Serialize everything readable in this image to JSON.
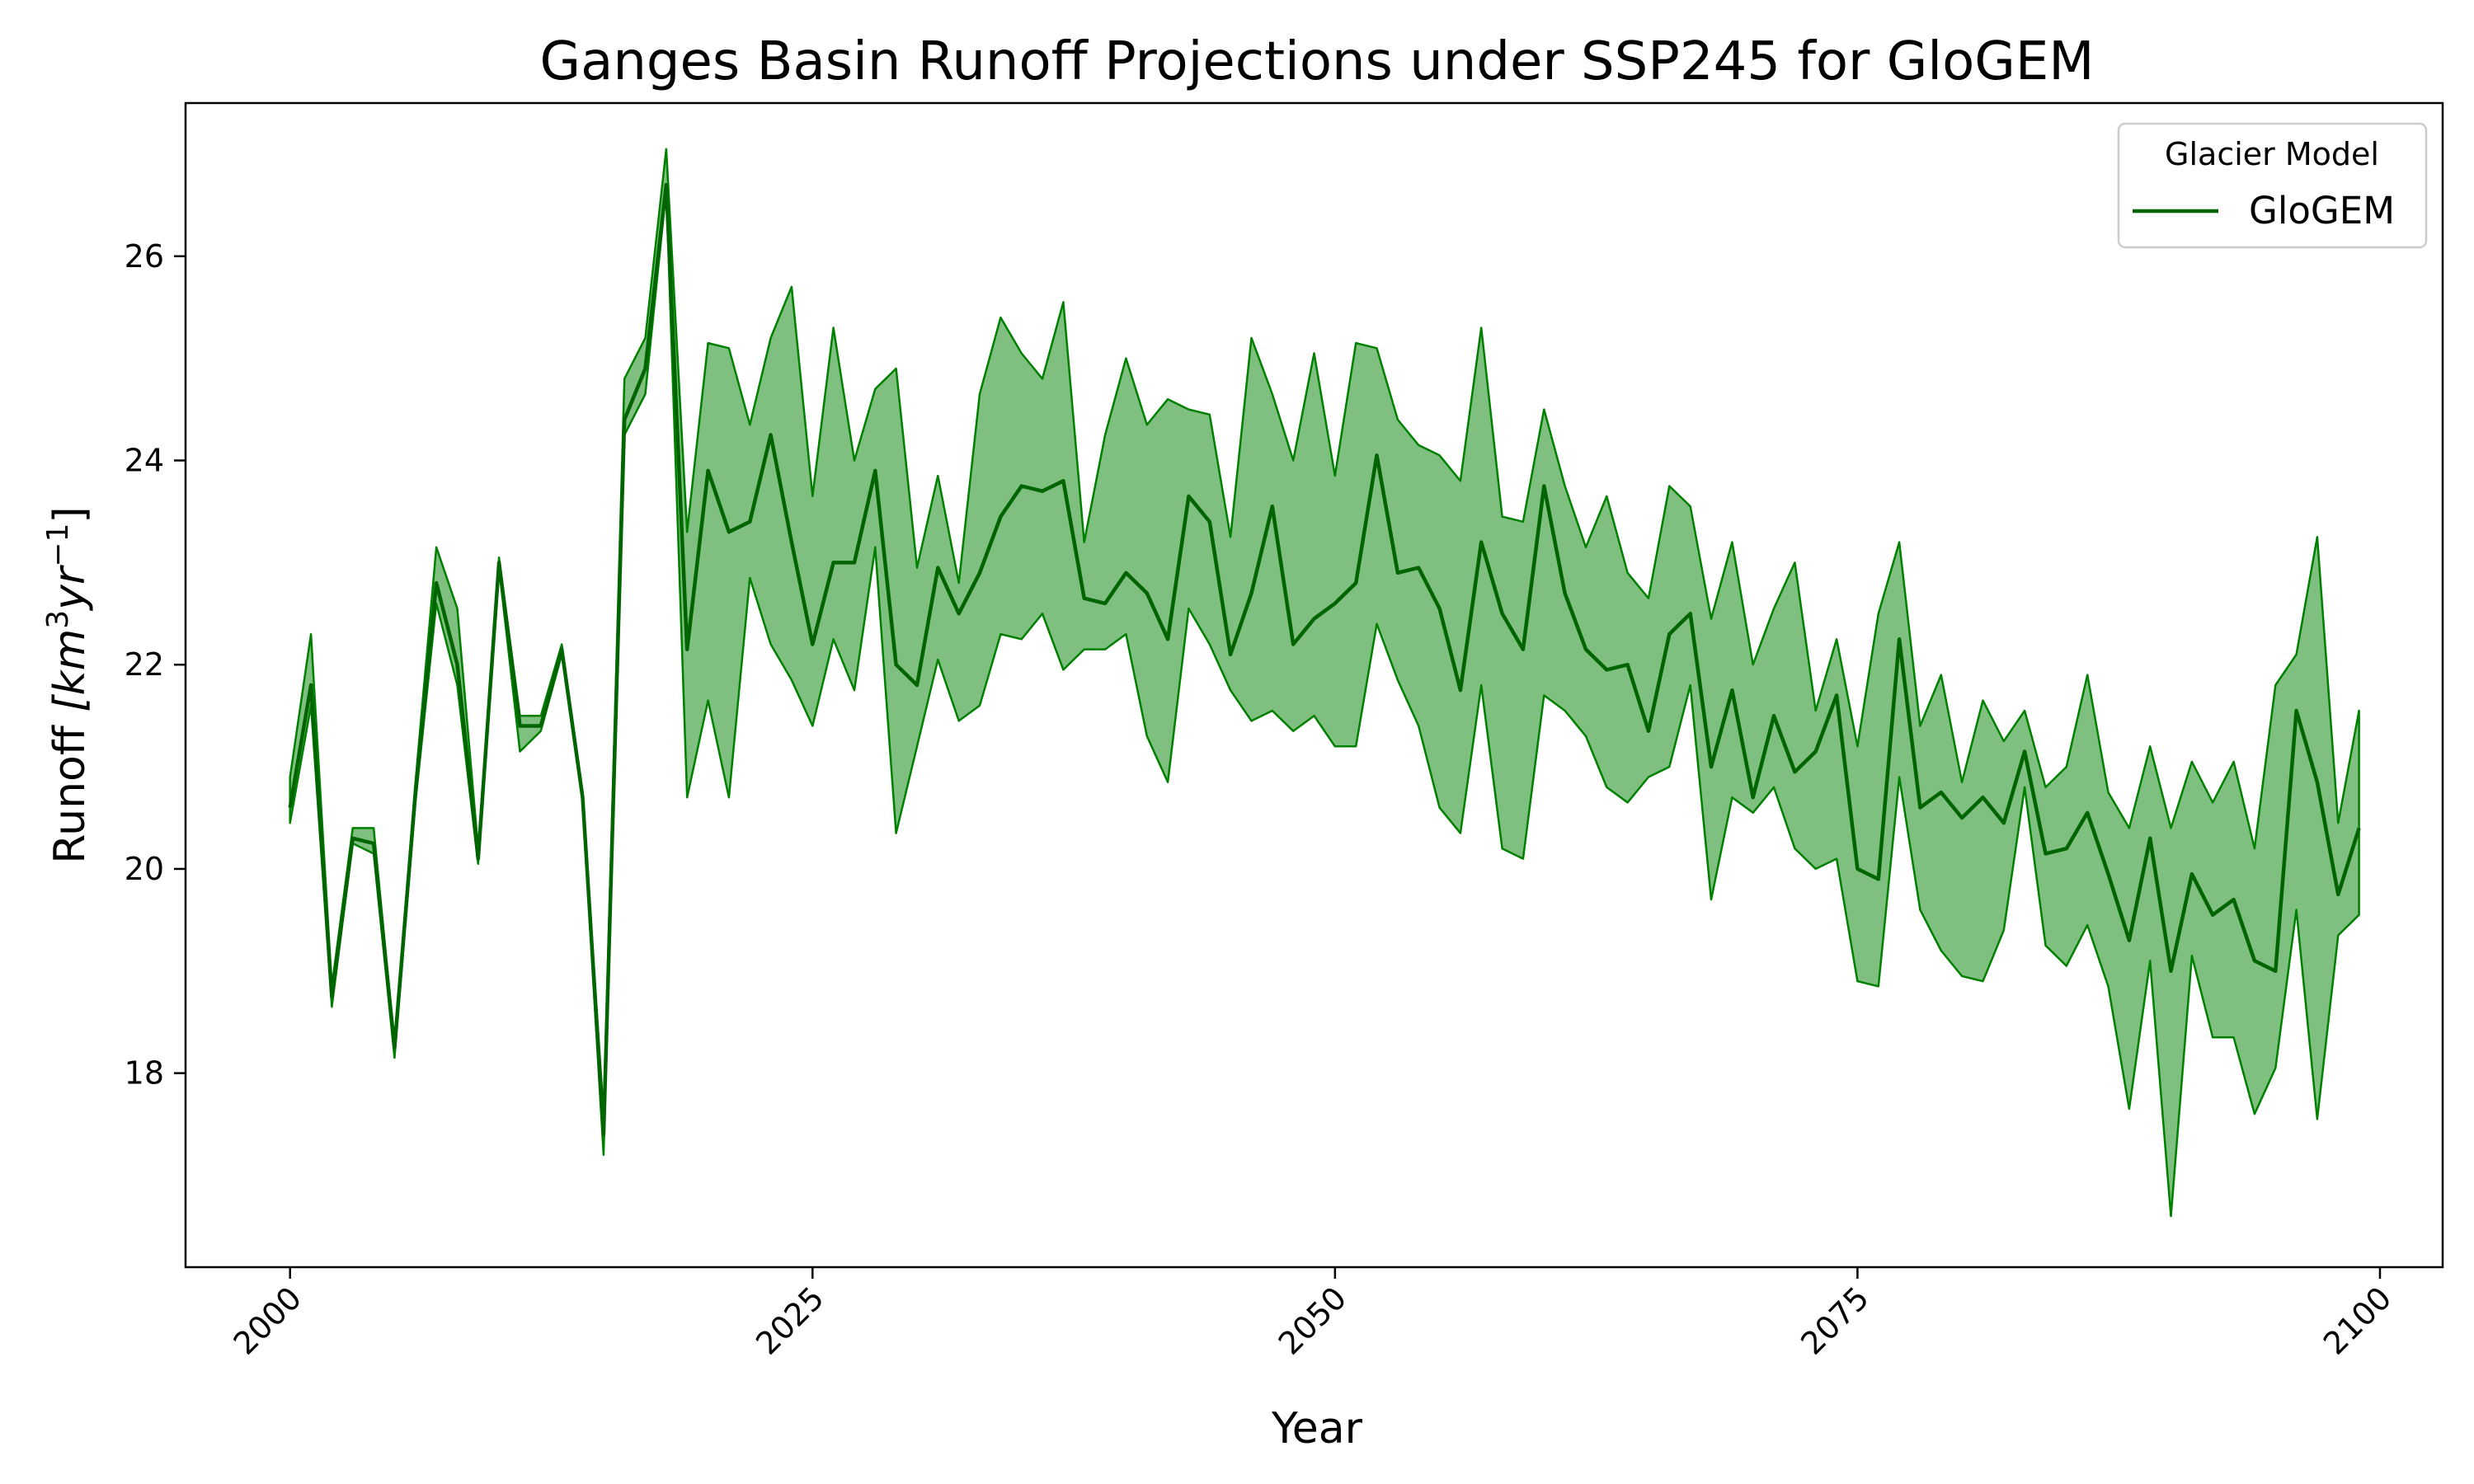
{
  "chart_data": {
    "type": "line",
    "title": "Ganges Basin Runoff Projections under SSP245 for GloGEM",
    "xlabel": "Year",
    "ylabel": "Runoff",
    "ylabel_unit_text": "[km",
    "ylabel_exp1": "3",
    "ylabel_unit_mid": "yr",
    "ylabel_exp2": "−1",
    "ylabel_close": "]",
    "xlim": [
      1995,
      2103
    ],
    "ylim": [
      16.1,
      27.5
    ],
    "xticks": [
      2000,
      2025,
      2050,
      2075,
      2100
    ],
    "yticks": [
      18,
      20,
      22,
      24,
      26
    ],
    "grid": false,
    "legend": {
      "title": "Glacier Model",
      "position": "top-right",
      "entries": [
        "GloGEM"
      ]
    },
    "colors": {
      "line": "#006400",
      "fill": "#008000",
      "fill_alpha": 0.5
    },
    "x": [
      2000,
      2001,
      2002,
      2003,
      2004,
      2005,
      2006,
      2007,
      2008,
      2009,
      2010,
      2011,
      2012,
      2013,
      2014,
      2015,
      2016,
      2017,
      2018,
      2019,
      2020,
      2021,
      2022,
      2023,
      2024,
      2025,
      2026,
      2027,
      2028,
      2029,
      2030,
      2031,
      2032,
      2033,
      2034,
      2035,
      2036,
      2037,
      2038,
      2039,
      2040,
      2041,
      2042,
      2043,
      2044,
      2045,
      2046,
      2047,
      2048,
      2049,
      2050,
      2051,
      2052,
      2053,
      2054,
      2055,
      2056,
      2057,
      2058,
      2059,
      2060,
      2061,
      2062,
      2063,
      2064,
      2065,
      2066,
      2067,
      2068,
      2069,
      2070,
      2071,
      2072,
      2073,
      2074,
      2075,
      2076,
      2077,
      2078,
      2079,
      2080,
      2081,
      2082,
      2083,
      2084,
      2085,
      2086,
      2087,
      2088,
      2089,
      2090,
      2091,
      2092,
      2093,
      2094,
      2095,
      2096,
      2097,
      2098,
      2099
    ],
    "series": [
      {
        "name": "GloGEM",
        "mean": [
          20.6,
          21.8,
          18.75,
          20.3,
          20.25,
          18.25,
          20.75,
          22.8,
          22.0,
          20.1,
          23.0,
          21.4,
          21.4,
          22.15,
          20.7,
          17.4,
          24.4,
          24.9,
          26.7,
          22.15,
          23.9,
          23.3,
          23.4,
          24.25,
          23.2,
          22.2,
          23.0,
          23.0,
          23.9,
          22.0,
          21.8,
          22.95,
          22.5,
          22.9,
          23.45,
          23.75,
          23.7,
          23.8,
          22.65,
          22.6,
          22.9,
          22.7,
          22.25,
          23.65,
          23.4,
          22.1,
          22.7,
          23.55,
          22.2,
          22.45,
          22.6,
          22.8,
          24.05,
          22.9,
          22.95,
          22.55,
          21.75,
          23.2,
          22.5,
          22.15,
          23.75,
          22.7,
          22.15,
          21.95,
          22.0,
          21.35,
          22.3,
          22.5,
          21.0,
          21.75,
          20.7,
          21.5,
          20.95,
          21.15,
          21.7,
          20.0,
          19.9,
          22.25,
          20.6,
          20.75,
          20.5,
          20.7,
          20.45,
          21.15,
          20.15,
          20.2,
          20.55,
          19.95,
          19.3,
          20.3,
          19.0,
          19.95,
          19.55,
          19.7,
          19.1,
          19.0,
          21.55,
          20.85,
          19.75,
          20.4
        ],
        "upper": [
          20.9,
          22.3,
          18.85,
          20.4,
          20.4,
          18.3,
          20.85,
          23.15,
          22.55,
          20.2,
          23.05,
          21.5,
          21.5,
          22.2,
          20.75,
          17.6,
          24.8,
          25.2,
          27.05,
          23.3,
          25.15,
          25.1,
          24.35,
          25.2,
          25.7,
          23.65,
          25.3,
          24.0,
          24.7,
          24.9,
          22.95,
          23.85,
          22.8,
          24.65,
          25.4,
          25.05,
          24.8,
          25.55,
          23.2,
          24.25,
          25.0,
          24.35,
          24.6,
          24.5,
          24.45,
          23.25,
          25.2,
          24.65,
          24.0,
          25.05,
          23.85,
          25.15,
          25.1,
          24.4,
          24.15,
          24.05,
          23.8,
          25.3,
          23.45,
          23.4,
          24.5,
          23.75,
          23.15,
          23.65,
          22.9,
          22.65,
          23.75,
          23.55,
          22.45,
          23.2,
          22.0,
          22.55,
          23.0,
          21.55,
          22.25,
          21.2,
          22.5,
          23.2,
          21.4,
          21.9,
          20.85,
          21.65,
          21.25,
          21.55,
          20.8,
          21.0,
          21.9,
          20.75,
          20.4,
          21.2,
          20.4,
          21.05,
          20.65,
          21.05,
          20.2,
          21.8,
          22.1,
          23.25,
          20.45,
          21.55
        ],
        "lower": [
          20.45,
          21.6,
          18.65,
          20.25,
          20.15,
          18.15,
          20.65,
          22.6,
          21.8,
          20.05,
          22.95,
          21.15,
          21.35,
          22.1,
          20.65,
          17.2,
          24.25,
          24.65,
          26.65,
          20.7,
          21.65,
          20.7,
          22.85,
          22.2,
          21.85,
          21.4,
          22.25,
          21.75,
          23.15,
          20.35,
          21.2,
          22.05,
          21.45,
          21.6,
          22.3,
          22.25,
          22.5,
          21.95,
          22.15,
          22.15,
          22.3,
          21.3,
          20.85,
          22.55,
          22.2,
          21.75,
          21.45,
          21.55,
          21.35,
          21.5,
          21.2,
          21.2,
          22.4,
          21.85,
          21.4,
          20.6,
          20.35,
          21.8,
          20.2,
          20.1,
          21.7,
          21.55,
          21.3,
          20.8,
          20.65,
          20.9,
          21.0,
          21.8,
          19.7,
          20.7,
          20.55,
          20.8,
          20.2,
          20.0,
          20.1,
          18.9,
          18.85,
          20.9,
          19.6,
          19.2,
          18.95,
          18.9,
          19.4,
          20.8,
          19.25,
          19.05,
          19.45,
          18.85,
          17.65,
          19.1,
          16.6,
          19.15,
          18.35,
          18.35,
          17.6,
          18.05,
          19.6,
          17.55,
          19.35,
          19.55
        ]
      }
    ]
  }
}
